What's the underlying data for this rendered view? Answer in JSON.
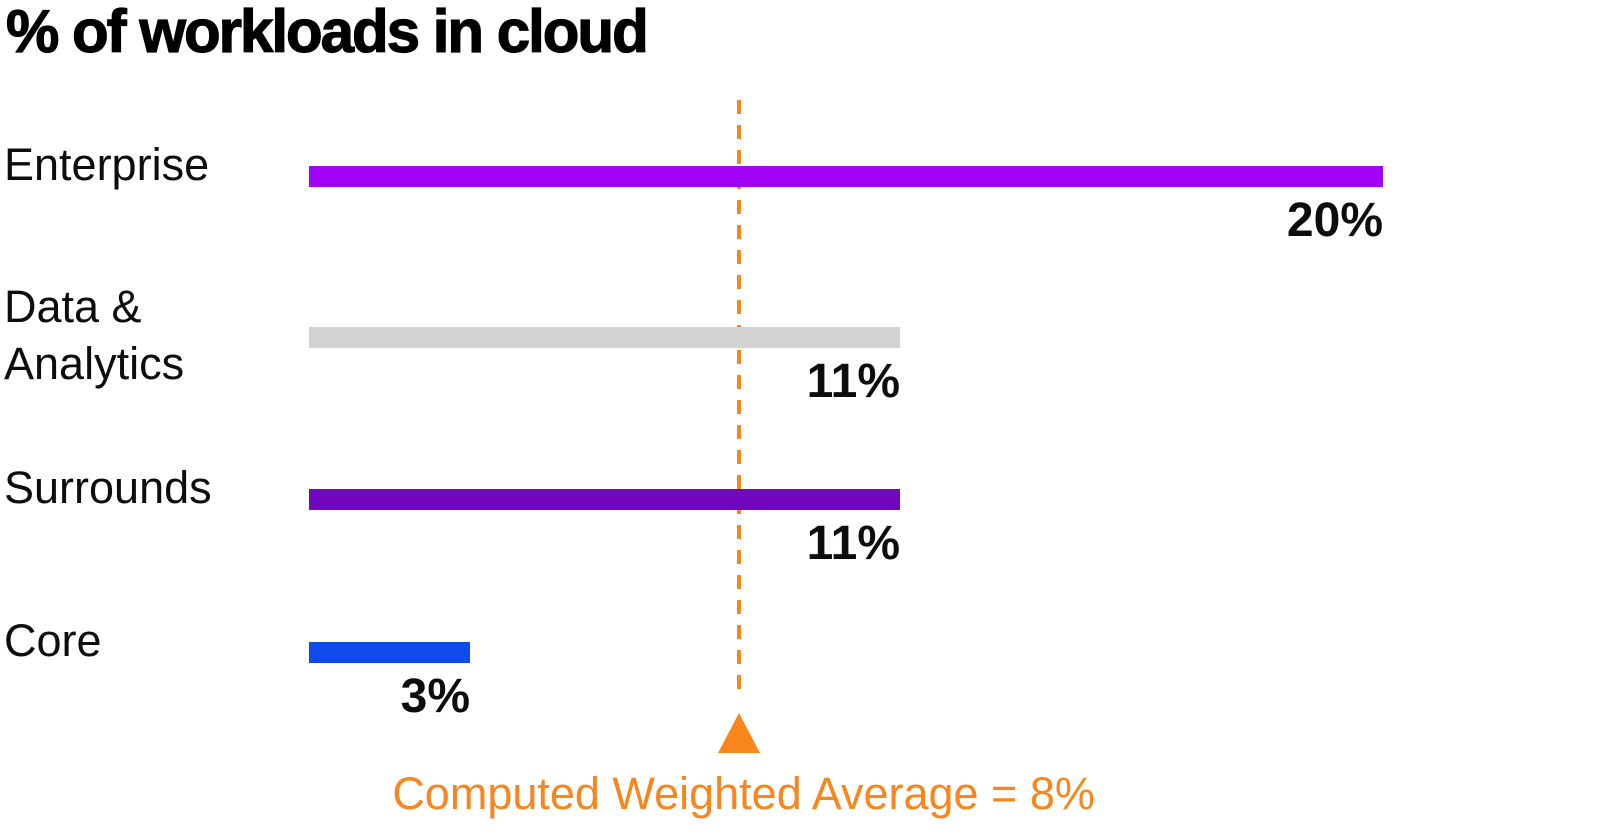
{
  "title": "% of workloads in cloud",
  "chart_data": {
    "type": "bar",
    "orientation": "horizontal",
    "title": "% of workloads in cloud",
    "categories": [
      "Enterprise",
      "Data & Analytics",
      "Surrounds",
      "Core"
    ],
    "display_labels": [
      "Enterprise",
      "Data &\nAnalytics",
      "Surrounds",
      "Core"
    ],
    "values": [
      20,
      11,
      11,
      3
    ],
    "value_labels": [
      "20%",
      "11%",
      "11%",
      "3%"
    ],
    "colors": [
      "#a204f8",
      "#d2d2d2",
      "#7108bf",
      "#0e4bea"
    ],
    "xlim": [
      0,
      20
    ],
    "grid": false,
    "legend": "none",
    "annotation": {
      "text": "Computed Weighted Average = 8%",
      "value": 8,
      "color": "#f8861d",
      "marker": "triangle-up",
      "line_style": "dashed"
    }
  }
}
